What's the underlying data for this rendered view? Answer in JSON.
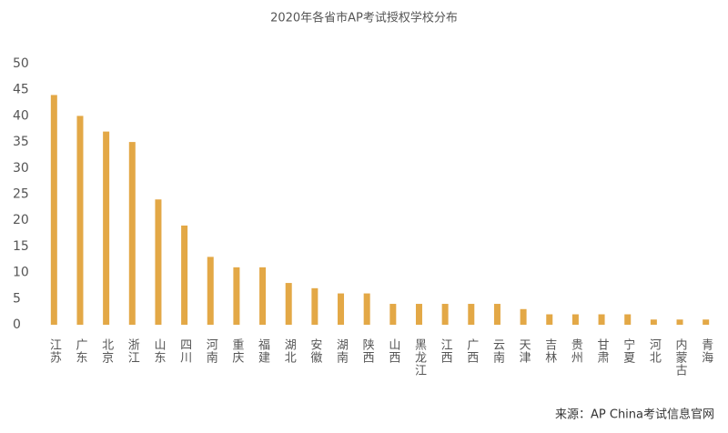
{
  "chart_data": {
    "type": "bar",
    "title": "2020年各省市AP考试授权学校分布",
    "categories": [
      "江苏",
      "广东",
      "北京",
      "浙江",
      "山东",
      "四川",
      "河南",
      "重庆",
      "福建",
      "湖北",
      "安徽",
      "湖南",
      "陕西",
      "山西",
      "黑龙江",
      "江西",
      "广西",
      "云南",
      "天津",
      "吉林",
      "贵州",
      "甘肃",
      "宁夏",
      "河北",
      "内蒙古",
      "青海"
    ],
    "values": [
      44,
      40,
      37,
      35,
      24,
      19,
      13,
      11,
      11,
      8,
      7,
      6,
      6,
      4,
      4,
      4,
      4,
      4,
      3,
      2,
      2,
      2,
      2,
      1,
      1,
      1
    ],
    "color": "#e3a846",
    "ylim": [
      0,
      50
    ],
    "yticks": [
      0,
      5,
      10,
      15,
      20,
      25,
      30,
      35,
      40,
      45,
      50
    ],
    "grid": false,
    "source": "来源：AP China考试信息官网"
  }
}
